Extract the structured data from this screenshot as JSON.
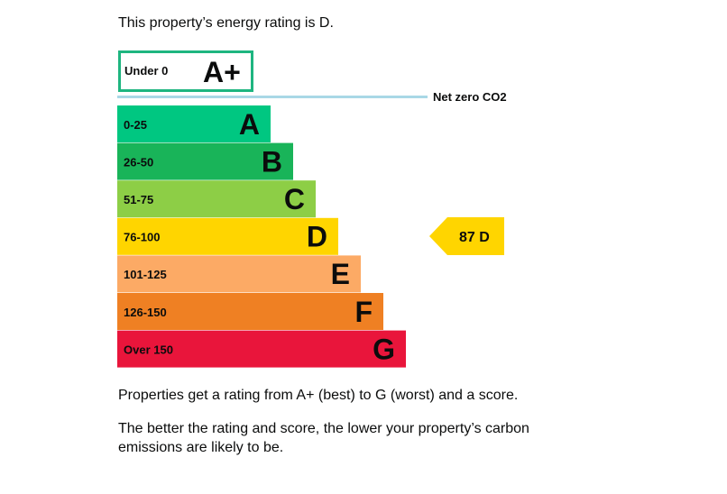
{
  "intro_text": "This property’s energy rating is D.",
  "paragraph_1": "Properties get a rating from A+ (best) to G (worst) and a score.",
  "paragraph_2": "The better the rating and score, the lower your property’s carbon emissions are likely to be.",
  "chart_data": {
    "type": "bar",
    "top_band": {
      "range": "Under 0",
      "letter": "A+",
      "border_color": "#1eb580"
    },
    "netzero_label": "Net zero CO2",
    "netzero_color": "#a9d8e6",
    "bands": [
      {
        "range": "0-25",
        "letter": "A",
        "color": "#00c781",
        "rank": 1
      },
      {
        "range": "26-50",
        "letter": "B",
        "color": "#19b459",
        "rank": 2
      },
      {
        "range": "51-75",
        "letter": "C",
        "color": "#8dce46",
        "rank": 3
      },
      {
        "range": "76-100",
        "letter": "D",
        "color": "#ffd500",
        "rank": 4
      },
      {
        "range": "101-125",
        "letter": "E",
        "color": "#fcaa65",
        "rank": 5
      },
      {
        "range": "126-150",
        "letter": "F",
        "color": "#ef8023",
        "rank": 6
      },
      {
        "range": "Over 150",
        "letter": "G",
        "color": "#e9153b",
        "rank": 7
      }
    ],
    "current": {
      "score": 87,
      "rating": "D",
      "label": "87 D",
      "color": "#ffd500"
    }
  }
}
